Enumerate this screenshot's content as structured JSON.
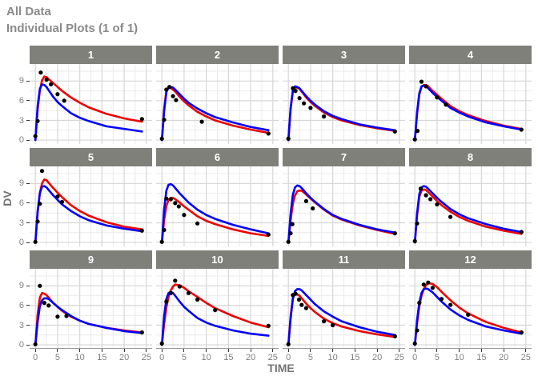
{
  "header": {
    "title": "All Data",
    "subtitle": "Individual Plots (1 of 1)"
  },
  "chart_data": {
    "type": "line",
    "title": "All Data",
    "subtitle": "Individual Plots (1 of 1)",
    "xlabel": "TIME",
    "ylabel": "DV",
    "x_ticks": [
      0,
      5,
      10,
      15,
      20,
      25
    ],
    "y_ticks": [
      0,
      3,
      6,
      9
    ],
    "x_minor": [
      2.5,
      7.5,
      12.5,
      17.5,
      22.5
    ],
    "y_minor": [
      1.5,
      4.5,
      7.5,
      10.5
    ],
    "xlim": [
      -1.3,
      26.3
    ],
    "ylim": [
      -0.6,
      11.6
    ],
    "grid": "on",
    "legend": "none",
    "series_names": [
      "observed-points",
      "red-line",
      "blue-line"
    ],
    "colors": {
      "red_line": "#ee0000",
      "blue_line": "#0000ff",
      "points": "#000000",
      "strip_bg": "#80807a",
      "strip_text": "#ffffff",
      "grid_major": "#d6d6d6",
      "grid_minor": "#ebebeb",
      "axis_line": "#999999",
      "tick_text": "#808080",
      "title_text": "#8a8a8a",
      "axis_text": "#737373"
    },
    "t": [
      0,
      0.5,
      1,
      1.5,
      2,
      2.5,
      3,
      4,
      5,
      6,
      8,
      10,
      12,
      16,
      20,
      24
    ],
    "facets": [
      {
        "label": "1",
        "red": [
          0,
          4.6,
          7.6,
          9.1,
          9.7,
          9.6,
          9.3,
          8.7,
          8.1,
          7.5,
          6.5,
          5.7,
          5.0,
          4.0,
          3.3,
          2.8
        ],
        "blue": [
          0,
          5.2,
          7.8,
          8.5,
          8.4,
          8.1,
          7.6,
          6.6,
          5.8,
          5.2,
          4.1,
          3.4,
          2.9,
          2.1,
          1.7,
          1.3
        ],
        "obs": [
          [
            0,
            0.6
          ],
          [
            0.5,
            2.9
          ],
          [
            1.2,
            10.3
          ],
          [
            2.5,
            9.2
          ],
          [
            3.5,
            8.5
          ],
          [
            5,
            7.0
          ],
          [
            6.5,
            6.0
          ],
          [
            24,
            3.2
          ]
        ]
      },
      {
        "label": "2",
        "red": [
          0,
          4.8,
          7.5,
          8.0,
          7.9,
          7.7,
          7.4,
          6.6,
          5.9,
          5.3,
          4.3,
          3.6,
          3.0,
          2.2,
          1.6,
          1.1
        ],
        "blue": [
          0,
          4.4,
          7.3,
          8.0,
          8.1,
          8.0,
          7.7,
          7.0,
          6.3,
          5.7,
          4.8,
          4.1,
          3.5,
          2.7,
          2.0,
          1.5
        ],
        "obs": [
          [
            0,
            0.2
          ],
          [
            0.5,
            3.1
          ],
          [
            1,
            7.7
          ],
          [
            1.7,
            8.1
          ],
          [
            2.5,
            6.7
          ],
          [
            3.2,
            6.1
          ],
          [
            9,
            2.8
          ],
          [
            24,
            1.0
          ]
        ]
      },
      {
        "label": "3",
        "red": [
          0,
          4.7,
          7.4,
          8.0,
          8.0,
          7.8,
          7.4,
          6.5,
          5.8,
          5.2,
          4.2,
          3.5,
          3.0,
          2.3,
          1.8,
          1.4
        ],
        "blue": [
          0,
          4.9,
          7.6,
          8.2,
          8.1,
          7.9,
          7.5,
          6.7,
          6.0,
          5.4,
          4.4,
          3.7,
          3.2,
          2.4,
          1.9,
          1.5
        ],
        "obs": [
          [
            0,
            0.2
          ],
          [
            1,
            7.9
          ],
          [
            1.6,
            7.5
          ],
          [
            2.5,
            6.4
          ],
          [
            3.5,
            5.6
          ],
          [
            5,
            4.9
          ],
          [
            8,
            3.6
          ],
          [
            24,
            1.3
          ]
        ]
      },
      {
        "label": "4",
        "red": [
          0,
          4.0,
          7.0,
          8.1,
          8.4,
          8.4,
          8.2,
          7.5,
          6.9,
          6.3,
          5.2,
          4.4,
          3.8,
          2.9,
          2.2,
          1.7
        ],
        "blue": [
          0,
          4.3,
          7.2,
          8.2,
          8.3,
          8.2,
          7.9,
          7.2,
          6.6,
          6.0,
          4.9,
          4.2,
          3.6,
          2.7,
          2.1,
          1.6
        ],
        "obs": [
          [
            0,
            0.1
          ],
          [
            0.6,
            1.4
          ],
          [
            1.5,
            8.9
          ],
          [
            2.5,
            8.2
          ],
          [
            5,
            6.5
          ],
          [
            7,
            5.4
          ],
          [
            24,
            1.6
          ]
        ]
      },
      {
        "label": "5",
        "red": [
          0,
          4.5,
          7.6,
          9.0,
          9.6,
          9.5,
          9.1,
          8.3,
          7.6,
          6.9,
          5.7,
          4.8,
          4.1,
          3.1,
          2.4,
          2.0
        ],
        "blue": [
          0,
          4.8,
          7.5,
          8.5,
          8.6,
          8.4,
          8.0,
          7.2,
          6.5,
          5.8,
          4.8,
          4.0,
          3.4,
          2.6,
          2.1,
          1.7
        ],
        "obs": [
          [
            0,
            0.1
          ],
          [
            0.5,
            3.2
          ],
          [
            1,
            5.9
          ],
          [
            1.5,
            10.9
          ],
          [
            5,
            7.0
          ],
          [
            6,
            6.2
          ],
          [
            24,
            1.8
          ]
        ]
      },
      {
        "label": "6",
        "red": [
          0,
          3.4,
          5.6,
          6.5,
          6.8,
          6.8,
          6.6,
          6.1,
          5.5,
          5.0,
          4.0,
          3.3,
          2.8,
          2.0,
          1.4,
          1.0
        ],
        "blue": [
          0,
          5.0,
          7.9,
          8.8,
          8.9,
          8.7,
          8.3,
          7.5,
          6.8,
          6.1,
          5.0,
          4.2,
          3.6,
          2.7,
          2.0,
          1.4
        ],
        "obs": [
          [
            0,
            0.1
          ],
          [
            0.5,
            1.9
          ],
          [
            1,
            6.7
          ],
          [
            2,
            6.6
          ],
          [
            3,
            6.0
          ],
          [
            3.8,
            5.5
          ],
          [
            5,
            4.2
          ],
          [
            8,
            2.9
          ],
          [
            24,
            1.2
          ]
        ]
      },
      {
        "label": "7",
        "red": [
          0,
          3.4,
          5.9,
          7.2,
          7.8,
          7.9,
          7.9,
          7.3,
          6.7,
          6.1,
          5.0,
          4.1,
          3.5,
          2.6,
          1.9,
          1.3
        ],
        "blue": [
          0,
          4.4,
          7.3,
          8.4,
          8.7,
          8.6,
          8.3,
          7.5,
          6.8,
          6.2,
          5.1,
          4.2,
          3.6,
          2.7,
          2.0,
          1.5
        ],
        "obs": [
          [
            0,
            0.1
          ],
          [
            0.5,
            1.4
          ],
          [
            0.9,
            2.8
          ],
          [
            4,
            6.3
          ],
          [
            5.5,
            5.2
          ],
          [
            24,
            1.4
          ]
        ]
      },
      {
        "label": "8",
        "red": [
          0,
          4.2,
          7.0,
          7.9,
          8.1,
          8.0,
          7.7,
          7.0,
          6.3,
          5.7,
          4.7,
          3.9,
          3.3,
          2.4,
          1.8,
          1.3
        ],
        "blue": [
          0,
          4.5,
          7.4,
          8.4,
          8.6,
          8.5,
          8.2,
          7.5,
          6.8,
          6.2,
          5.1,
          4.3,
          3.7,
          2.8,
          2.1,
          1.6
        ],
        "obs": [
          [
            0,
            0.2
          ],
          [
            0.5,
            2.9
          ],
          [
            1.3,
            8.2
          ],
          [
            2.5,
            7.2
          ],
          [
            3.5,
            6.6
          ],
          [
            5,
            5.8
          ],
          [
            8,
            3.9
          ],
          [
            24,
            1.6
          ]
        ]
      },
      {
        "label": "9",
        "red": [
          0,
          4.7,
          7.2,
          7.9,
          7.8,
          7.6,
          7.2,
          6.4,
          5.8,
          5.2,
          4.3,
          3.7,
          3.2,
          2.6,
          2.2,
          1.9
        ],
        "blue": [
          0,
          3.5,
          5.9,
          6.8,
          7.1,
          7.1,
          7.0,
          6.4,
          5.8,
          5.3,
          4.4,
          3.7,
          3.2,
          2.6,
          2.1,
          1.8
        ],
        "obs": [
          [
            0,
            0.1
          ],
          [
            1,
            9.0
          ],
          [
            2,
            6.4
          ],
          [
            3,
            6.0
          ],
          [
            5,
            4.3
          ],
          [
            7,
            4.4
          ],
          [
            24,
            1.9
          ]
        ]
      },
      {
        "label": "10",
        "red": [
          0,
          3.2,
          5.7,
          7.3,
          8.3,
          8.9,
          9.2,
          9.1,
          8.7,
          8.2,
          7.3,
          6.4,
          5.6,
          4.4,
          3.4,
          2.7
        ],
        "blue": [
          0,
          4.4,
          7.0,
          7.9,
          8.1,
          7.9,
          7.5,
          6.6,
          5.8,
          5.2,
          4.1,
          3.4,
          2.9,
          2.2,
          1.7,
          1.4
        ],
        "obs": [
          [
            0,
            0.2
          ],
          [
            1,
            6.6
          ],
          [
            2,
            7.9
          ],
          [
            3,
            9.8
          ],
          [
            4,
            8.9
          ],
          [
            6,
            7.9
          ],
          [
            8,
            6.9
          ],
          [
            12,
            5.3
          ],
          [
            24,
            2.9
          ]
        ]
      },
      {
        "label": "11",
        "red": [
          0,
          4.4,
          7.2,
          7.8,
          7.7,
          7.5,
          7.1,
          6.3,
          5.6,
          5.0,
          4.0,
          3.3,
          2.8,
          2.1,
          1.6,
          1.2
        ],
        "blue": [
          0,
          4.0,
          7.0,
          8.2,
          8.5,
          8.5,
          8.3,
          7.6,
          6.9,
          6.2,
          5.1,
          4.3,
          3.6,
          2.7,
          2.0,
          1.5
        ],
        "obs": [
          [
            0,
            0.1
          ],
          [
            1,
            7.6
          ],
          [
            1.6,
            7.8
          ],
          [
            2.4,
            6.9
          ],
          [
            3,
            6.1
          ],
          [
            4,
            5.6
          ],
          [
            8,
            3.6
          ],
          [
            10,
            3.0
          ],
          [
            24,
            1.3
          ]
        ]
      },
      {
        "label": "12",
        "red": [
          0,
          3.3,
          5.9,
          7.5,
          8.5,
          9.1,
          9.4,
          9.3,
          8.8,
          8.1,
          6.8,
          5.7,
          4.8,
          3.5,
          2.6,
          1.9
        ],
        "blue": [
          0,
          3.8,
          6.5,
          7.9,
          8.5,
          8.6,
          8.5,
          8.0,
          7.3,
          6.6,
          5.4,
          4.5,
          3.8,
          2.8,
          2.2,
          1.7
        ],
        "obs": [
          [
            0,
            0.2
          ],
          [
            0.5,
            2.2
          ],
          [
            1,
            6.4
          ],
          [
            2,
            9.2
          ],
          [
            3,
            9.5
          ],
          [
            4,
            8.7
          ],
          [
            6,
            7.0
          ],
          [
            8,
            6.1
          ],
          [
            12,
            4.6
          ],
          [
            24,
            1.9
          ]
        ]
      }
    ]
  }
}
